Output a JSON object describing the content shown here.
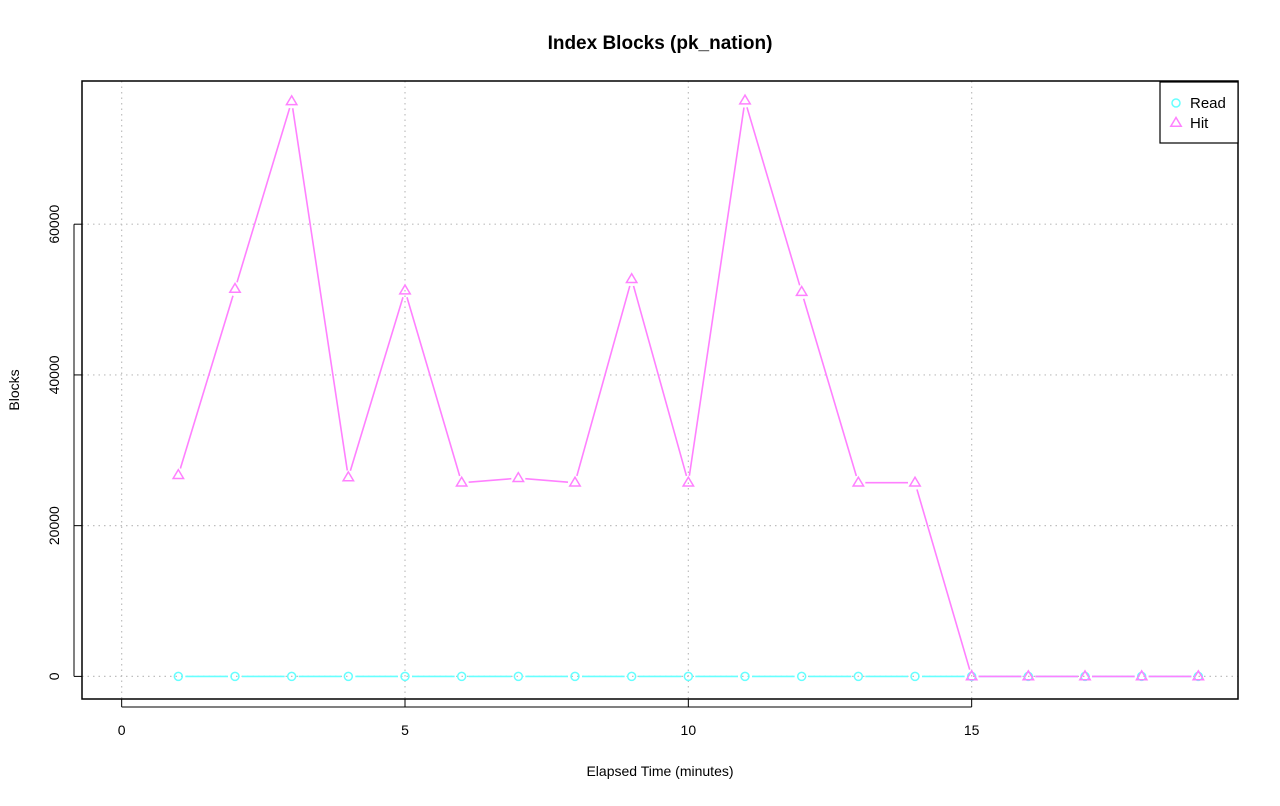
{
  "chart_data": {
    "type": "line",
    "title": "Index Blocks (pk_nation)",
    "xlabel": "Elapsed Time (minutes)",
    "ylabel": "Blocks",
    "xlim": [
      -0.7,
      19.7
    ],
    "ylim": [
      -3000,
      79000
    ],
    "x_ticks": [
      0,
      5,
      10,
      15
    ],
    "y_ticks": [
      0,
      20000,
      40000,
      60000
    ],
    "grid": true,
    "legend_position": "top-right",
    "colors": {
      "read": "#66ffff",
      "hit": "#ff80ff",
      "grid": "#bebebe",
      "axis": "#000000"
    },
    "series": [
      {
        "name": "Read",
        "marker": "circle",
        "x": [
          1,
          2,
          3,
          4,
          5,
          6,
          7,
          8,
          9,
          10,
          11,
          12,
          13,
          14,
          15,
          16,
          17,
          18,
          19
        ],
        "values": [
          0,
          0,
          0,
          0,
          0,
          0,
          0,
          0,
          0,
          0,
          0,
          0,
          0,
          0,
          0,
          0,
          0,
          0,
          0
        ]
      },
      {
        "name": "Hit",
        "marker": "triangle",
        "x": [
          1,
          2,
          3,
          4,
          5,
          6,
          7,
          8,
          9,
          10,
          11,
          12,
          13,
          14,
          15,
          16,
          17,
          18,
          19
        ],
        "values": [
          26700,
          51400,
          76300,
          26400,
          51200,
          25700,
          26300,
          25700,
          52700,
          25700,
          76400,
          51000,
          25700,
          25700,
          0,
          0,
          0,
          0,
          0
        ]
      }
    ]
  }
}
